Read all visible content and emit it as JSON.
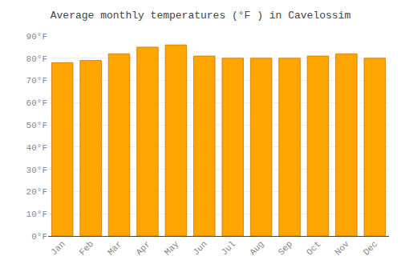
{
  "chart_data": {
    "type": "bar",
    "title": "Average monthly temperatures (°F ) in Cavelossim",
    "categories": [
      "Jan",
      "Feb",
      "Mar",
      "Apr",
      "May",
      "Jun",
      "Jul",
      "Aug",
      "Sep",
      "Oct",
      "Nov",
      "Dec"
    ],
    "values": [
      78,
      79,
      82,
      85,
      86,
      81,
      80,
      80,
      80,
      81,
      82,
      80
    ],
    "color": "#FFA500",
    "ylim": [
      0,
      90
    ],
    "yticks": [
      {
        "value": 0,
        "label": "0°F"
      },
      {
        "value": 10,
        "label": "10°F"
      },
      {
        "value": 20,
        "label": "20°F"
      },
      {
        "value": 30,
        "label": "30°F"
      },
      {
        "value": 40,
        "label": "40°F"
      },
      {
        "value": 50,
        "label": "50°F"
      },
      {
        "value": 60,
        "label": "60°F"
      },
      {
        "value": 70,
        "label": "70°F"
      },
      {
        "value": 80,
        "label": "80°F"
      },
      {
        "value": 90,
        "label": "90°F"
      }
    ],
    "grid": true
  }
}
